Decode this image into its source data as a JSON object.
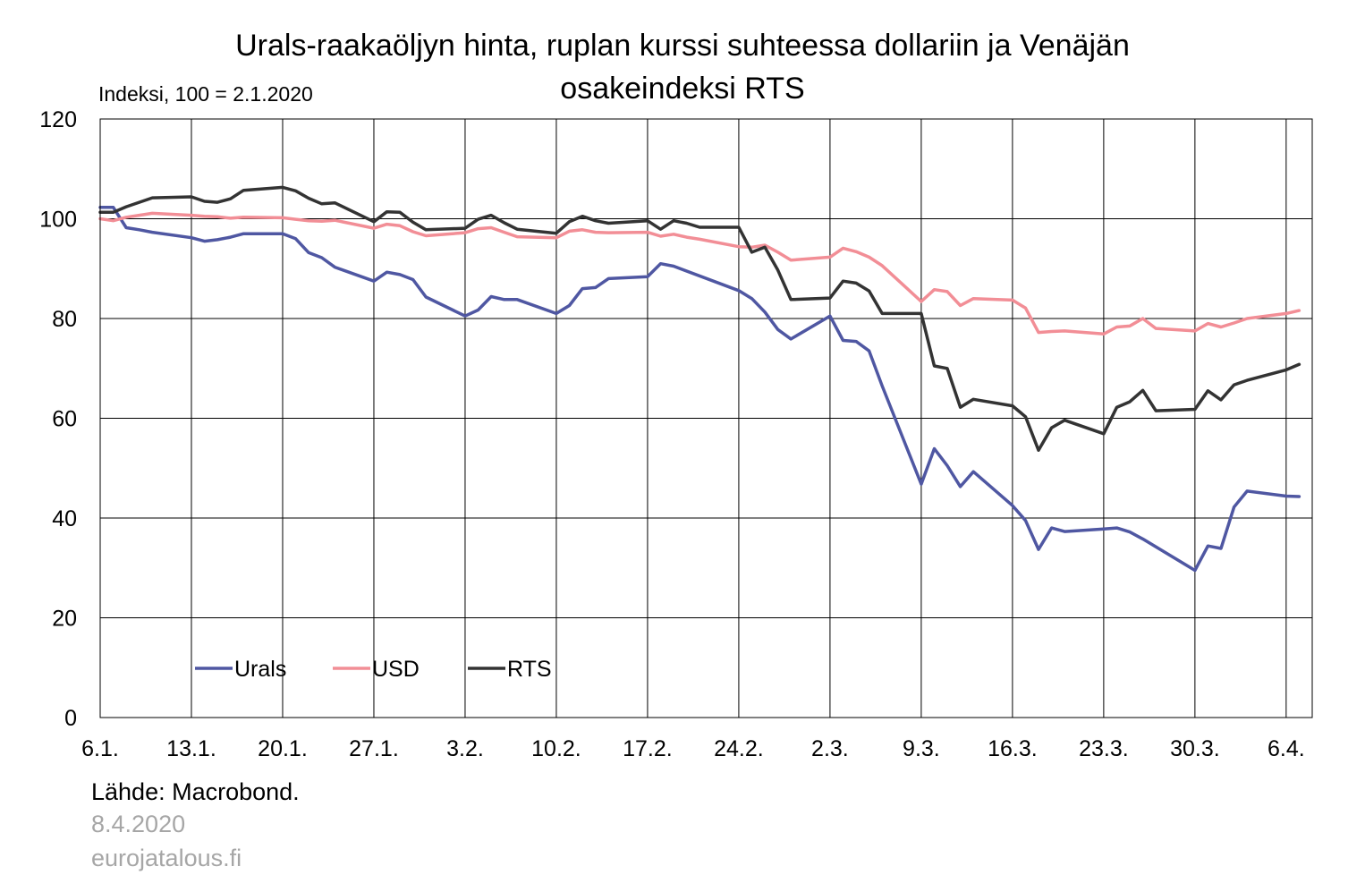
{
  "chart_data": {
    "type": "line",
    "title_lines": [
      "Urals-raakaöljyn hinta, ruplan kurssi suhteessa dollariin ja Venäjän",
      "osakeindeksi RTS"
    ],
    "ylabel": "Indeksi, 100 = 2.1.2020",
    "ylim": [
      0,
      120
    ],
    "yticks": [
      0,
      20,
      40,
      60,
      80,
      100,
      120
    ],
    "xlim": [
      "2020-01-06",
      "2020-04-08"
    ],
    "xticks": [
      {
        "date": "2020-01-06",
        "label": "6.1."
      },
      {
        "date": "2020-01-13",
        "label": "13.1."
      },
      {
        "date": "2020-01-20",
        "label": "20.1."
      },
      {
        "date": "2020-01-27",
        "label": "27.1."
      },
      {
        "date": "2020-02-03",
        "label": "3.2."
      },
      {
        "date": "2020-02-10",
        "label": "10.2."
      },
      {
        "date": "2020-02-17",
        "label": "17.2."
      },
      {
        "date": "2020-02-24",
        "label": "24.2."
      },
      {
        "date": "2020-03-02",
        "label": "2.3."
      },
      {
        "date": "2020-03-09",
        "label": "9.3."
      },
      {
        "date": "2020-03-16",
        "label": "16.3."
      },
      {
        "date": "2020-03-23",
        "label": "23.3."
      },
      {
        "date": "2020-03-30",
        "label": "30.3."
      },
      {
        "date": "2020-04-06",
        "label": "6.4."
      }
    ],
    "grid": true,
    "legend_position": "bottom-left",
    "series": [
      {
        "name": "Urals",
        "color": "#4f57a2",
        "points": [
          [
            "2020-01-06",
            102.3
          ],
          [
            "2020-01-07",
            102.3
          ],
          [
            "2020-01-08",
            98.2
          ],
          [
            "2020-01-09",
            97.8
          ],
          [
            "2020-01-10",
            97.3
          ],
          [
            "2020-01-13",
            96.2
          ],
          [
            "2020-01-14",
            95.5
          ],
          [
            "2020-01-15",
            95.8
          ],
          [
            "2020-01-16",
            96.3
          ],
          [
            "2020-01-17",
            97.0
          ],
          [
            "2020-01-20",
            97.0
          ],
          [
            "2020-01-21",
            96.0
          ],
          [
            "2020-01-22",
            93.2
          ],
          [
            "2020-01-23",
            92.2
          ],
          [
            "2020-01-24",
            90.3
          ],
          [
            "2020-01-27",
            87.5
          ],
          [
            "2020-01-28",
            89.3
          ],
          [
            "2020-01-29",
            88.8
          ],
          [
            "2020-01-30",
            87.8
          ],
          [
            "2020-01-31",
            84.3
          ],
          [
            "2020-02-03",
            80.5
          ],
          [
            "2020-02-04",
            81.7
          ],
          [
            "2020-02-05",
            84.4
          ],
          [
            "2020-02-06",
            83.8
          ],
          [
            "2020-02-07",
            83.8
          ],
          [
            "2020-02-10",
            81.0
          ],
          [
            "2020-02-11",
            82.6
          ],
          [
            "2020-02-12",
            86.0
          ],
          [
            "2020-02-13",
            86.2
          ],
          [
            "2020-02-14",
            88.0
          ],
          [
            "2020-02-17",
            88.4
          ],
          [
            "2020-02-18",
            91.0
          ],
          [
            "2020-02-19",
            90.5
          ],
          [
            "2020-02-24",
            85.6
          ],
          [
            "2020-02-25",
            84.0
          ],
          [
            "2020-02-26",
            81.3
          ],
          [
            "2020-02-27",
            77.8
          ],
          [
            "2020-02-28",
            75.9
          ],
          [
            "2020-03-02",
            80.5
          ],
          [
            "2020-03-03",
            75.6
          ],
          [
            "2020-03-04",
            75.4
          ],
          [
            "2020-03-05",
            73.5
          ],
          [
            "2020-03-06",
            66.5
          ],
          [
            "2020-03-09",
            46.8
          ],
          [
            "2020-03-10",
            53.9
          ],
          [
            "2020-03-11",
            50.5
          ],
          [
            "2020-03-12",
            46.3
          ],
          [
            "2020-03-13",
            49.3
          ],
          [
            "2020-03-16",
            42.5
          ],
          [
            "2020-03-17",
            39.5
          ],
          [
            "2020-03-18",
            33.7
          ],
          [
            "2020-03-19",
            38.0
          ],
          [
            "2020-03-20",
            37.3
          ],
          [
            "2020-03-23",
            37.8
          ],
          [
            "2020-03-24",
            38.0
          ],
          [
            "2020-03-25",
            37.2
          ],
          [
            "2020-03-26",
            35.8
          ],
          [
            "2020-03-30",
            29.5
          ],
          [
            "2020-03-31",
            34.4
          ],
          [
            "2020-04-01",
            33.9
          ],
          [
            "2020-04-02",
            42.2
          ],
          [
            "2020-04-03",
            45.4
          ],
          [
            "2020-04-06",
            44.4
          ],
          [
            "2020-04-07",
            44.3
          ]
        ]
      },
      {
        "name": "USD",
        "color": "#f28e96",
        "points": [
          [
            "2020-01-06",
            100.0
          ],
          [
            "2020-01-07",
            99.6
          ],
          [
            "2020-01-08",
            100.3
          ],
          [
            "2020-01-09",
            100.7
          ],
          [
            "2020-01-10",
            101.1
          ],
          [
            "2020-01-13",
            100.7
          ],
          [
            "2020-01-14",
            100.5
          ],
          [
            "2020-01-15",
            100.4
          ],
          [
            "2020-01-16",
            100.1
          ],
          [
            "2020-01-17",
            100.3
          ],
          [
            "2020-01-20",
            100.2
          ],
          [
            "2020-01-21",
            99.9
          ],
          [
            "2020-01-22",
            99.6
          ],
          [
            "2020-01-23",
            99.5
          ],
          [
            "2020-01-24",
            99.7
          ],
          [
            "2020-01-27",
            98.1
          ],
          [
            "2020-01-28",
            98.9
          ],
          [
            "2020-01-29",
            98.6
          ],
          [
            "2020-01-30",
            97.4
          ],
          [
            "2020-01-31",
            96.6
          ],
          [
            "2020-02-03",
            97.2
          ],
          [
            "2020-02-04",
            98.0
          ],
          [
            "2020-02-05",
            98.2
          ],
          [
            "2020-02-06",
            97.3
          ],
          [
            "2020-02-07",
            96.4
          ],
          [
            "2020-02-10",
            96.2
          ],
          [
            "2020-02-11",
            97.5
          ],
          [
            "2020-02-12",
            97.8
          ],
          [
            "2020-02-13",
            97.3
          ],
          [
            "2020-02-14",
            97.2
          ],
          [
            "2020-02-17",
            97.3
          ],
          [
            "2020-02-18",
            96.5
          ],
          [
            "2020-02-19",
            96.9
          ],
          [
            "2020-02-20",
            96.3
          ],
          [
            "2020-02-21",
            95.9
          ],
          [
            "2020-02-24",
            94.4
          ],
          [
            "2020-02-25",
            94.3
          ],
          [
            "2020-02-26",
            94.7
          ],
          [
            "2020-02-27",
            93.3
          ],
          [
            "2020-02-28",
            91.7
          ],
          [
            "2020-03-02",
            92.3
          ],
          [
            "2020-03-03",
            94.1
          ],
          [
            "2020-03-04",
            93.4
          ],
          [
            "2020-03-05",
            92.3
          ],
          [
            "2020-03-06",
            90.6
          ],
          [
            "2020-03-09",
            83.4
          ],
          [
            "2020-03-10",
            85.8
          ],
          [
            "2020-03-11",
            85.4
          ],
          [
            "2020-03-12",
            82.6
          ],
          [
            "2020-03-13",
            84.0
          ],
          [
            "2020-03-16",
            83.7
          ],
          [
            "2020-03-17",
            82.1
          ],
          [
            "2020-03-18",
            77.2
          ],
          [
            "2020-03-19",
            77.4
          ],
          [
            "2020-03-20",
            77.5
          ],
          [
            "2020-03-23",
            76.9
          ],
          [
            "2020-03-24",
            78.3
          ],
          [
            "2020-03-25",
            78.5
          ],
          [
            "2020-03-26",
            80.0
          ],
          [
            "2020-03-27",
            78.0
          ],
          [
            "2020-03-30",
            77.5
          ],
          [
            "2020-03-31",
            79.0
          ],
          [
            "2020-04-01",
            78.3
          ],
          [
            "2020-04-02",
            79.1
          ],
          [
            "2020-04-03",
            80.0
          ],
          [
            "2020-04-06",
            81.0
          ],
          [
            "2020-04-07",
            81.6
          ]
        ]
      },
      {
        "name": "RTS",
        "color": "#333333",
        "points": [
          [
            "2020-01-06",
            101.3
          ],
          [
            "2020-01-07",
            101.3
          ],
          [
            "2020-01-08",
            102.4
          ],
          [
            "2020-01-09",
            103.3
          ],
          [
            "2020-01-10",
            104.2
          ],
          [
            "2020-01-13",
            104.4
          ],
          [
            "2020-01-14",
            103.5
          ],
          [
            "2020-01-15",
            103.3
          ],
          [
            "2020-01-16",
            104.0
          ],
          [
            "2020-01-17",
            105.7
          ],
          [
            "2020-01-20",
            106.3
          ],
          [
            "2020-01-21",
            105.6
          ],
          [
            "2020-01-22",
            104.1
          ],
          [
            "2020-01-23",
            103.0
          ],
          [
            "2020-01-24",
            103.2
          ],
          [
            "2020-01-27",
            99.4
          ],
          [
            "2020-01-28",
            101.4
          ],
          [
            "2020-01-29",
            101.3
          ],
          [
            "2020-01-30",
            99.3
          ],
          [
            "2020-01-31",
            97.8
          ],
          [
            "2020-02-03",
            98.1
          ],
          [
            "2020-02-04",
            99.9
          ],
          [
            "2020-02-05",
            100.7
          ],
          [
            "2020-02-06",
            99.2
          ],
          [
            "2020-02-07",
            97.9
          ],
          [
            "2020-02-10",
            97.1
          ],
          [
            "2020-02-11",
            99.4
          ],
          [
            "2020-02-12",
            100.5
          ],
          [
            "2020-02-13",
            99.6
          ],
          [
            "2020-02-14",
            99.1
          ],
          [
            "2020-02-17",
            99.6
          ],
          [
            "2020-02-18",
            97.9
          ],
          [
            "2020-02-19",
            99.6
          ],
          [
            "2020-02-20",
            99.1
          ],
          [
            "2020-02-21",
            98.3
          ],
          [
            "2020-02-24",
            98.3
          ],
          [
            "2020-02-25",
            93.3
          ],
          [
            "2020-02-26",
            94.3
          ],
          [
            "2020-02-27",
            89.7
          ],
          [
            "2020-02-28",
            83.8
          ],
          [
            "2020-03-02",
            84.1
          ],
          [
            "2020-03-03",
            87.5
          ],
          [
            "2020-03-04",
            87.1
          ],
          [
            "2020-03-05",
            85.5
          ],
          [
            "2020-03-06",
            81.0
          ],
          [
            "2020-03-09",
            81.0
          ],
          [
            "2020-03-10",
            70.5
          ],
          [
            "2020-03-11",
            70.0
          ],
          [
            "2020-03-12",
            62.2
          ],
          [
            "2020-03-13",
            63.8
          ],
          [
            "2020-03-16",
            62.5
          ],
          [
            "2020-03-17",
            60.3
          ],
          [
            "2020-03-18",
            53.6
          ],
          [
            "2020-03-19",
            58.1
          ],
          [
            "2020-03-20",
            59.6
          ],
          [
            "2020-03-23",
            56.9
          ],
          [
            "2020-03-24",
            62.2
          ],
          [
            "2020-03-25",
            63.3
          ],
          [
            "2020-03-26",
            65.6
          ],
          [
            "2020-03-27",
            61.5
          ],
          [
            "2020-03-30",
            61.8
          ],
          [
            "2020-03-31",
            65.5
          ],
          [
            "2020-04-01",
            63.7
          ],
          [
            "2020-04-02",
            66.7
          ],
          [
            "2020-04-03",
            67.6
          ],
          [
            "2020-04-06",
            69.7
          ],
          [
            "2020-04-07",
            70.8
          ]
        ]
      }
    ]
  },
  "footer": {
    "source": "Lähde: Macrobond.",
    "date": "8.4.2020",
    "site": "eurojatalous.fi"
  }
}
